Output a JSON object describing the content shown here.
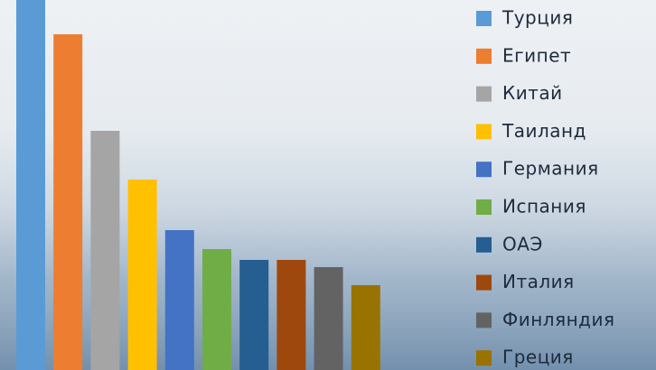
{
  "chart_data": {
    "type": "bar",
    "categories": [
      "Турция",
      "Египет",
      "Китай",
      "Таиланд",
      "Германия",
      "Испания",
      "ОАЭ",
      "Италия",
      "Финляндия",
      "Греция"
    ],
    "values": [
      410,
      372,
      265,
      211,
      155,
      134,
      122,
      122,
      114,
      94
    ],
    "colors": [
      "#5b9bd5",
      "#ed7d31",
      "#a5a5a5",
      "#ffc000",
      "#4472c4",
      "#70ad47",
      "#255e91",
      "#9e480e",
      "#636363",
      "#997300"
    ],
    "ylim": [
      0,
      410
    ],
    "legend": "right"
  }
}
